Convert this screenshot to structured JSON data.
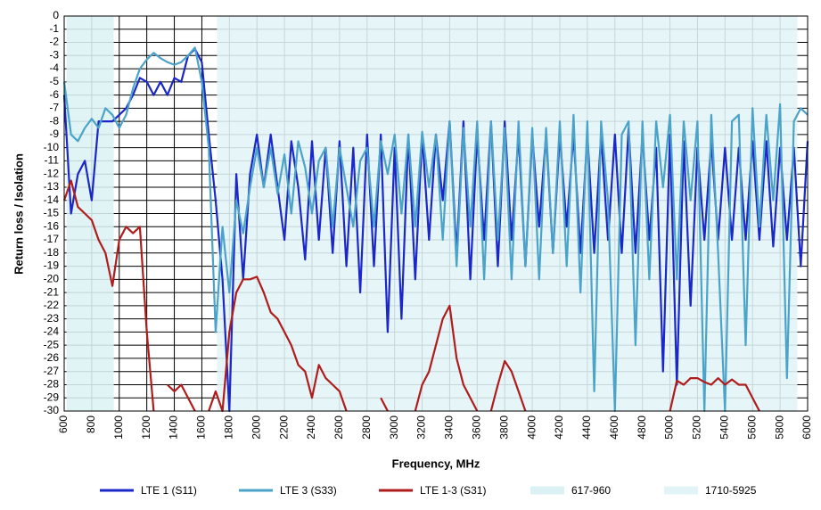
{
  "chart_data": {
    "type": "line",
    "xlabel": "Frequency, MHz",
    "ylabel": "Return loss / Isolation",
    "x": [
      600,
      650,
      700,
      750,
      800,
      850,
      900,
      950,
      1000,
      1050,
      1100,
      1150,
      1200,
      1250,
      1300,
      1350,
      1400,
      1450,
      1500,
      1550,
      1600,
      1650,
      1700,
      1750,
      1800,
      1850,
      1900,
      1950,
      2000,
      2050,
      2100,
      2150,
      2200,
      2250,
      2300,
      2350,
      2400,
      2450,
      2500,
      2550,
      2600,
      2650,
      2700,
      2750,
      2800,
      2850,
      2900,
      2950,
      3000,
      3050,
      3100,
      3150,
      3200,
      3250,
      3300,
      3350,
      3400,
      3450,
      3500,
      3550,
      3600,
      3650,
      3700,
      3750,
      3800,
      3850,
      3900,
      3950,
      4000,
      4050,
      4100,
      4150,
      4200,
      4250,
      4300,
      4350,
      4400,
      4450,
      4500,
      4550,
      4600,
      4650,
      4700,
      4750,
      4800,
      4850,
      4900,
      4950,
      5000,
      5050,
      5100,
      5150,
      5200,
      5250,
      5300,
      5350,
      5400,
      5450,
      5500,
      5550,
      5600,
      5650,
      5700,
      5750,
      5800,
      5850,
      5900,
      5950,
      6000
    ],
    "series": [
      {
        "name": "LTE 1 (S11)",
        "color": "#1a27c9",
        "values": [
          -6,
          -15,
          -12,
          -11,
          -14,
          -8,
          -8,
          -8,
          -7.5,
          -7,
          -6,
          -4.7,
          -5,
          -6,
          -5,
          -6,
          -4.7,
          -5,
          -3,
          -2.5,
          -3.5,
          -9,
          -14,
          -20,
          -30,
          -12,
          -20,
          -12,
          -9,
          -13,
          -9,
          -13,
          -17,
          -9.5,
          -13,
          -18.5,
          -9.5,
          -17,
          -10,
          -18,
          -9.5,
          -19,
          -10,
          -21,
          -9,
          -19,
          -9,
          -24,
          -10,
          -23,
          -9,
          -20,
          -9,
          -17,
          -9,
          -14,
          -8,
          -18,
          -8,
          -20,
          -9,
          -17,
          -8,
          -19,
          -8,
          -17,
          -9,
          -19,
          -9,
          -16,
          -9,
          -18,
          -9,
          -16,
          -9,
          -18,
          -9,
          -18,
          -9,
          -17,
          -9,
          -18,
          -8.5,
          -18,
          -9,
          -17,
          -10,
          -27,
          -9,
          -28,
          -9.5,
          -22,
          -10,
          -17,
          -9.5,
          -17,
          -10,
          -17,
          -10,
          -17,
          -9.5,
          -17,
          -9.5,
          -17.5,
          -10,
          -17,
          -10,
          -19,
          -9.5
        ]
      },
      {
        "name": "LTE 3 (S33)",
        "color": "#4ba3c9",
        "values": [
          -5,
          -9,
          -9.5,
          -8.5,
          -7.8,
          -8.5,
          -7,
          -7.5,
          -8.5,
          -7.5,
          -5.5,
          -4,
          -3.3,
          -2.8,
          -3.2,
          -3.5,
          -3.7,
          -3.5,
          -3,
          -2.4,
          -5,
          -10,
          -24,
          -16,
          -21,
          -14,
          -16.5,
          -13,
          -10,
          -13,
          -10,
          -13.5,
          -10.5,
          -15,
          -9.5,
          -11.5,
          -15,
          -11,
          -10,
          -16,
          -10,
          -13,
          -16,
          -11,
          -10,
          -16,
          -9.5,
          -12,
          -9,
          -15,
          -9,
          -16,
          -8.8,
          -13,
          -9,
          -17,
          -8,
          -19,
          -8.5,
          -16,
          -8,
          -20,
          -8,
          -17,
          -8.5,
          -20,
          -8,
          -19,
          -8.5,
          -20,
          -8.5,
          -18,
          -8,
          -19,
          -7.5,
          -21,
          -8,
          -28.5,
          -8,
          -14,
          -30,
          -9,
          -8,
          -25,
          -8,
          -20,
          -8,
          -13,
          -7.5,
          -20,
          -8,
          -14,
          -8,
          -30,
          -7.5,
          -18,
          -30,
          -8,
          -7.5,
          -25,
          -7,
          -16,
          -7.5,
          -14,
          -6.7,
          -27.5,
          -8,
          -7,
          -7.5
        ]
      },
      {
        "name": "LTE 1-3 (S31)",
        "color": "#b01c1c",
        "values": [
          -14,
          -12.5,
          -14.5,
          -15,
          -15.5,
          -17,
          -18,
          -20.5,
          -17,
          -16,
          -16.5,
          -16,
          -24,
          -30,
          null,
          -28,
          -28.5,
          -28,
          -29,
          -30,
          null,
          -30,
          -28.5,
          -30,
          -24,
          -21,
          -20,
          -20,
          -19.8,
          -21,
          -22.5,
          -23,
          -24,
          -25,
          -26.5,
          -27,
          -29,
          -26.5,
          -27.5,
          -28,
          -28.5,
          -30,
          null,
          null,
          null,
          null,
          -29,
          -30,
          null,
          null,
          null,
          -30,
          -28,
          -27,
          -25,
          -23,
          -22,
          -26,
          -28,
          -29,
          -30,
          null,
          -30,
          -28,
          -26.2,
          -27,
          -28.5,
          -30,
          null,
          null,
          null,
          null,
          null,
          null,
          null,
          null,
          null,
          null,
          null,
          null,
          null,
          null,
          null,
          null,
          null,
          null,
          null,
          null,
          -30,
          -27.7,
          -28,
          -27.5,
          -27.5,
          -27.8,
          -28,
          -27.5,
          -28,
          -27.6,
          -28,
          -28,
          -29,
          -30,
          null,
          null,
          null,
          null,
          null,
          null,
          null
        ]
      }
    ],
    "bands": [
      {
        "name": "617-960",
        "from": 617,
        "to": 960,
        "color": "#dcf1f4"
      },
      {
        "name": "1710-5925",
        "from": 1710,
        "to": 5925,
        "color": "#e2f4f7"
      }
    ],
    "xlim": [
      600,
      6000
    ],
    "ylim": [
      -30,
      0
    ],
    "xticks": [
      600,
      800,
      1000,
      1200,
      1400,
      1600,
      1800,
      2000,
      2200,
      2400,
      2600,
      2800,
      3000,
      3200,
      3400,
      3600,
      3800,
      4000,
      4200,
      4400,
      4600,
      4800,
      5000,
      5200,
      5400,
      5600,
      5800,
      6000
    ],
    "yticks": [
      0,
      -1,
      -2,
      -3,
      -4,
      -5,
      -6,
      -7,
      -8,
      -9,
      -10,
      -11,
      -12,
      -13,
      -14,
      -15,
      -16,
      -17,
      -18,
      -19,
      -20,
      -21,
      -22,
      -23,
      -24,
      -25,
      -26,
      -27,
      -28,
      -29,
      -30
    ],
    "grid": true,
    "legend": "bottom"
  }
}
